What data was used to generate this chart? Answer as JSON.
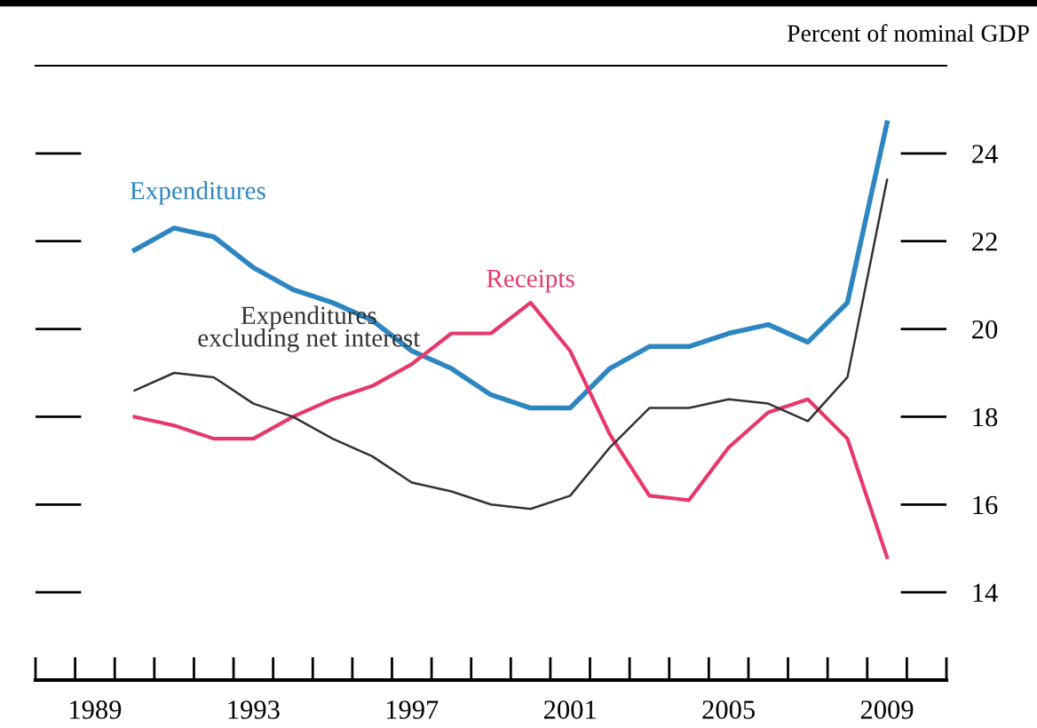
{
  "chart_data": {
    "type": "line",
    "ylabel": "Percent of nominal GDP",
    "x": [
      1990,
      1991,
      1992,
      1993,
      1994,
      1995,
      1996,
      1997,
      1998,
      1999,
      2000,
      2001,
      2002,
      2003,
      2004,
      2005,
      2006,
      2007,
      2008,
      2009
    ],
    "series": [
      {
        "name": "Expenditures",
        "color": "#2e86c1",
        "values": [
          21.8,
          22.3,
          22.1,
          21.4,
          20.9,
          20.6,
          20.2,
          19.5,
          19.1,
          18.5,
          18.2,
          18.2,
          19.1,
          19.6,
          19.6,
          19.9,
          20.1,
          19.7,
          20.6,
          24.7
        ]
      },
      {
        "name": "Receipts",
        "color": "#e8386a",
        "values": [
          18.0,
          17.8,
          17.5,
          17.5,
          18.0,
          18.4,
          18.7,
          19.2,
          19.9,
          19.9,
          20.6,
          19.5,
          17.6,
          16.2,
          16.1,
          17.3,
          18.1,
          18.4,
          17.5,
          14.8
        ]
      },
      {
        "name": "Expenditures\nexcluding net interest",
        "color": "#333333",
        "values": [
          18.6,
          19.0,
          18.9,
          18.3,
          18.0,
          17.5,
          17.1,
          16.5,
          16.3,
          16.0,
          15.9,
          16.2,
          17.3,
          18.2,
          18.2,
          18.4,
          18.3,
          17.9,
          18.9,
          23.4
        ]
      }
    ],
    "xlim": [
      1987.5,
      2010.5
    ],
    "xticks": [
      1989,
      1993,
      1997,
      2001,
      2005,
      2009
    ],
    "ylim": [
      12,
      26
    ],
    "yticks": [
      14,
      16,
      18,
      20,
      22,
      24
    ],
    "grid": false,
    "legend": false,
    "marker": "none",
    "line_style": "solid"
  }
}
